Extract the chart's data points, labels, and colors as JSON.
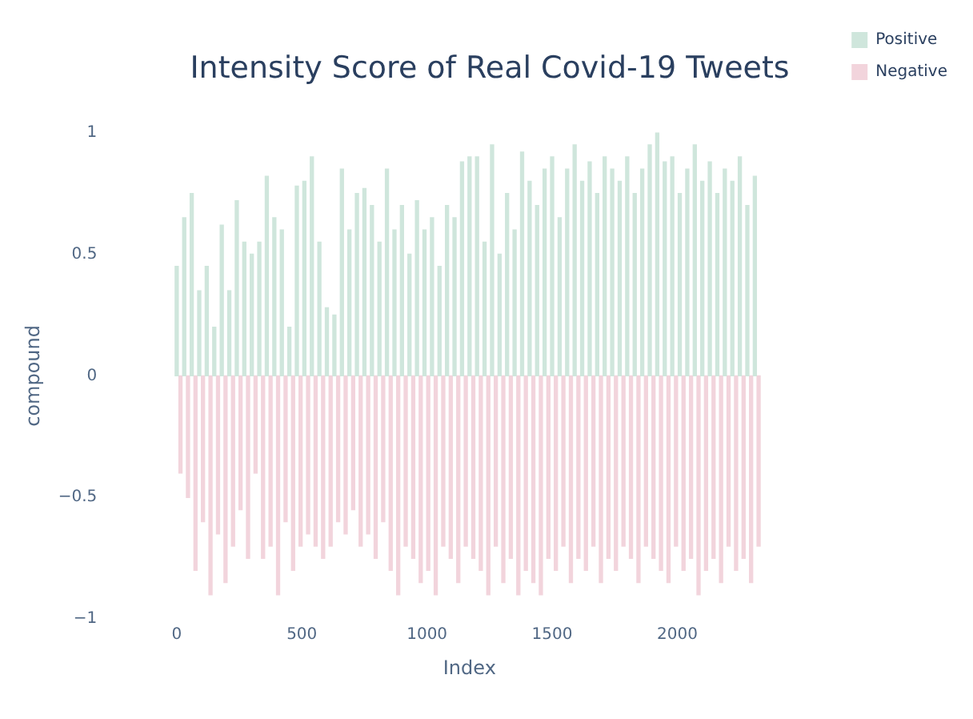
{
  "chart_data": {
    "type": "bar",
    "title": "Intensity Score of Real Covid-19 Tweets",
    "xlabel": "Index",
    "ylabel": "compound",
    "xlim": [
      0,
      2340
    ],
    "xticks": [
      0,
      500,
      1000,
      1500,
      2000
    ],
    "ylim": [
      -1,
      1
    ],
    "yticks": [
      {
        "value": -1,
        "label": "−1"
      },
      {
        "value": -0.5,
        "label": "−0.5"
      },
      0,
      0.5,
      1
    ],
    "grid": false,
    "legend": "top right",
    "series": [
      {
        "name": "Positive",
        "color": "#cfe6dc",
        "x": [
          0,
          30,
          60,
          90,
          120,
          150,
          180,
          210,
          240,
          270,
          300,
          330,
          360,
          390,
          420,
          450,
          480,
          510,
          540,
          570,
          600,
          630,
          660,
          690,
          720,
          750,
          780,
          810,
          840,
          870,
          900,
          930,
          960,
          990,
          1020,
          1050,
          1080,
          1110,
          1140,
          1170,
          1200,
          1230,
          1260,
          1290,
          1320,
          1350,
          1380,
          1410,
          1440,
          1470,
          1500,
          1530,
          1560,
          1590,
          1620,
          1650,
          1680,
          1710,
          1740,
          1770,
          1800,
          1830,
          1860,
          1890,
          1920,
          1950,
          1980,
          2010,
          2040,
          2070,
          2100,
          2130,
          2160,
          2190,
          2220,
          2250,
          2280,
          2310
        ],
        "values": [
          0.45,
          0.65,
          0.75,
          0.35,
          0.45,
          0.2,
          0.62,
          0.35,
          0.72,
          0.55,
          0.5,
          0.55,
          0.82,
          0.65,
          0.6,
          0.2,
          0.78,
          0.8,
          0.9,
          0.55,
          0.28,
          0.25,
          0.85,
          0.6,
          0.75,
          0.77,
          0.7,
          0.55,
          0.85,
          0.6,
          0.7,
          0.5,
          0.72,
          0.6,
          0.65,
          0.45,
          0.7,
          0.65,
          0.88,
          0.9,
          0.9,
          0.55,
          0.95,
          0.5,
          0.75,
          0.6,
          0.92,
          0.8,
          0.7,
          0.85,
          0.9,
          0.65,
          0.85,
          0.95,
          0.8,
          0.88,
          0.75,
          0.9,
          0.85,
          0.8,
          0.9,
          0.75,
          0.85,
          0.95,
          1.0,
          0.88,
          0.9,
          0.75,
          0.85,
          0.95,
          0.8,
          0.88,
          0.75,
          0.85,
          0.8,
          0.9,
          0.7,
          0.82
        ]
      },
      {
        "name": "Negative",
        "color": "#f2d4dc",
        "x": [
          15,
          45,
          75,
          105,
          135,
          165,
          195,
          225,
          255,
          285,
          315,
          345,
          375,
          405,
          435,
          465,
          495,
          525,
          555,
          585,
          615,
          645,
          675,
          705,
          735,
          765,
          795,
          825,
          855,
          885,
          915,
          945,
          975,
          1005,
          1035,
          1065,
          1095,
          1125,
          1155,
          1185,
          1215,
          1245,
          1275,
          1305,
          1335,
          1365,
          1395,
          1425,
          1455,
          1485,
          1515,
          1545,
          1575,
          1605,
          1635,
          1665,
          1695,
          1725,
          1755,
          1785,
          1815,
          1845,
          1875,
          1905,
          1935,
          1965,
          1995,
          2025,
          2055,
          2085,
          2115,
          2145,
          2175,
          2205,
          2235,
          2265,
          2295,
          2325
        ],
        "values": [
          -0.4,
          -0.5,
          -0.8,
          -0.6,
          -0.9,
          -0.65,
          -0.85,
          -0.7,
          -0.55,
          -0.75,
          -0.4,
          -0.75,
          -0.7,
          -0.9,
          -0.6,
          -0.8,
          -0.7,
          -0.65,
          -0.7,
          -0.75,
          -0.7,
          -0.6,
          -0.65,
          -0.55,
          -0.7,
          -0.65,
          -0.75,
          -0.6,
          -0.8,
          -0.9,
          -0.7,
          -0.75,
          -0.85,
          -0.8,
          -0.9,
          -0.7,
          -0.75,
          -0.85,
          -0.7,
          -0.75,
          -0.8,
          -0.9,
          -0.7,
          -0.85,
          -0.75,
          -0.9,
          -0.8,
          -0.85,
          -0.9,
          -0.75,
          -0.8,
          -0.7,
          -0.85,
          -0.75,
          -0.8,
          -0.7,
          -0.85,
          -0.75,
          -0.8,
          -0.7,
          -0.75,
          -0.85,
          -0.7,
          -0.75,
          -0.8,
          -0.85,
          -0.7,
          -0.8,
          -0.75,
          -0.9,
          -0.8,
          -0.75,
          -0.85,
          -0.7,
          -0.8,
          -0.75,
          -0.85,
          -0.7
        ]
      }
    ]
  }
}
